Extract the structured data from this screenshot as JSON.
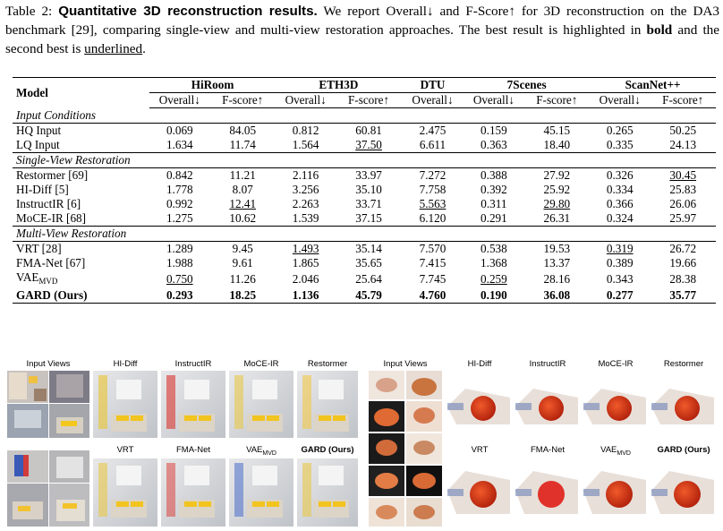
{
  "caption": {
    "prefix": "Table 2: ",
    "bold": "Quantitative 3D reconstruction results.",
    "text1": " We report Overall↓ and F-Score↑ for 3D reconstruction on the DA3 benchmark [29], comparing single-view and multi-view restoration approaches. The best result is highlighted in ",
    "bold_word": "bold",
    "text2": " and the second best is ",
    "underlined_word": "underlined",
    "text3": "."
  },
  "table": {
    "model_header": "Model",
    "datasets": [
      "HiRoom",
      "ETH3D",
      "DTU",
      "7Scenes",
      "ScanNet++"
    ],
    "metrics": [
      "Overall↓",
      "F-score↑",
      "Overall↓",
      "F-score↑",
      "Overall↓",
      "Overall↓",
      "F-score↑",
      "Overall↓",
      "F-score↑"
    ],
    "sections": [
      {
        "title": "Input Conditions",
        "rows": [
          {
            "model": "HQ Input",
            "values": [
              "0.069",
              "84.05",
              "0.812",
              "60.81",
              "2.475",
              "0.159",
              "45.15",
              "0.265",
              "50.25"
            ],
            "style": [
              "",
              "",
              "",
              "",
              "",
              "",
              "",
              "",
              ""
            ]
          },
          {
            "model": "LQ Input",
            "values": [
              "1.634",
              "11.74",
              "1.564",
              "37.50",
              "6.611",
              "0.363",
              "18.40",
              "0.335",
              "24.13"
            ],
            "style": [
              "",
              "",
              "",
              "u",
              "",
              "",
              "",
              "",
              ""
            ]
          }
        ]
      },
      {
        "title": "Single-View Restoration",
        "rows": [
          {
            "model": "Restormer [69]",
            "values": [
              "0.842",
              "11.21",
              "2.116",
              "33.97",
              "7.272",
              "0.388",
              "27.92",
              "0.326",
              "30.45"
            ],
            "style": [
              "",
              "",
              "",
              "",
              "",
              "",
              "",
              "",
              "u"
            ]
          },
          {
            "model": "HI-Diff [5]",
            "values": [
              "1.778",
              "8.07",
              "3.256",
              "35.10",
              "7.758",
              "0.392",
              "25.92",
              "0.334",
              "25.83"
            ],
            "style": [
              "",
              "",
              "",
              "",
              "",
              "",
              "",
              "",
              ""
            ]
          },
          {
            "model": "InstructIR [6]",
            "values": [
              "0.992",
              "12.41",
              "2.263",
              "33.71",
              "5.563",
              "0.311",
              "29.80",
              "0.366",
              "26.06"
            ],
            "style": [
              "",
              "u",
              "",
              "",
              "u",
              "",
              "u",
              "",
              ""
            ]
          },
          {
            "model": "MoCE-IR [68]",
            "values": [
              "1.275",
              "10.62",
              "1.539",
              "37.15",
              "6.120",
              "0.291",
              "26.31",
              "0.324",
              "25.97"
            ],
            "style": [
              "",
              "",
              "",
              "",
              "",
              "",
              "",
              "",
              ""
            ]
          }
        ]
      },
      {
        "title": "Multi-View Restoration",
        "rows": [
          {
            "model": "VRT [28]",
            "values": [
              "1.289",
              "9.45",
              "1.493",
              "35.14",
              "7.570",
              "0.538",
              "19.53",
              "0.319",
              "26.72"
            ],
            "style": [
              "",
              "",
              "u",
              "",
              "",
              "",
              "",
              "u",
              ""
            ]
          },
          {
            "model": "FMA-Net [67]",
            "values": [
              "1.988",
              "9.61",
              "1.865",
              "35.65",
              "7.415",
              "1.368",
              "13.37",
              "0.389",
              "19.66"
            ],
            "style": [
              "",
              "",
              "",
              "",
              "",
              "",
              "",
              "",
              ""
            ]
          },
          {
            "model": "VAE",
            "model_sub": "MVD",
            "values": [
              "0.750",
              "11.26",
              "2.046",
              "25.64",
              "7.745",
              "0.259",
              "28.16",
              "0.343",
              "28.38"
            ],
            "style": [
              "u",
              "",
              "",
              "",
              "",
              "u",
              "",
              "",
              ""
            ]
          },
          {
            "model": "GARD (Ours)",
            "bold": true,
            "values": [
              "0.293",
              "18.25",
              "1.136",
              "45.79",
              "4.760",
              "0.190",
              "36.08",
              "0.277",
              "35.77"
            ],
            "style": [
              "b",
              "b",
              "b",
              "b",
              "b",
              "b",
              "b",
              "b",
              "b"
            ]
          }
        ]
      }
    ]
  },
  "figure": {
    "left": {
      "top_labels": [
        "Input Views",
        "HI-Diff",
        "InstructIR",
        "MoCE-IR",
        "Restormer"
      ],
      "bottom_labels": [
        "VRT",
        "FMA-Net",
        "VAE",
        "GARD (Ours)"
      ],
      "vae_sub": "MVD"
    },
    "right": {
      "top_labels": [
        "Input Views",
        "HI-Diff",
        "InstructIR",
        "MoCE-IR",
        "Restormer"
      ],
      "bottom_labels": [
        "VRT",
        "FMA-Net",
        "VAE",
        "GARD (Ours)"
      ],
      "vae_sub": "MVD"
    }
  }
}
